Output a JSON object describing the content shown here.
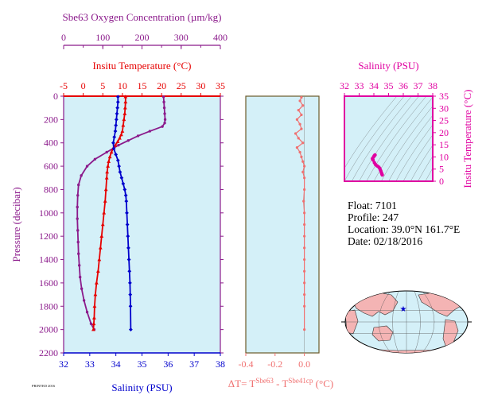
{
  "colors": {
    "oxygen": "#8b1a8b",
    "temperature": "#e60000",
    "salinity": "#0000cc",
    "delta": "#f07070",
    "ts": "#e000a0",
    "plot_bg": "#d4f0f8",
    "frame_dark": "#6b5a2a"
  },
  "float_info": {
    "float": "Float:  7101",
    "profile": "Profile:  247",
    "location": "Location:  39.0°N  161.7°E",
    "date": "Date:  02/18/2016"
  },
  "footer_tag": "PRINTED 2016",
  "chart_data": [
    {
      "type": "line",
      "name": "main-profile",
      "ylabel": "Pressure (decibar)",
      "ylim": [
        2200,
        0
      ],
      "yticks": [
        0,
        200,
        400,
        600,
        800,
        1000,
        1200,
        1400,
        1600,
        1800,
        2000,
        2200
      ],
      "axes": {
        "oxygen": {
          "label": "Sbe63 Oxygen Concentration (µm/kg)",
          "lim": [
            0,
            400
          ],
          "ticks": [
            0,
            100,
            200,
            300,
            400
          ]
        },
        "temperature": {
          "label": "Insitu Temperature (°C)",
          "lim": [
            -5,
            35
          ],
          "ticks": [
            -5,
            0,
            5,
            10,
            15,
            20,
            25,
            30,
            35
          ]
        },
        "salinity": {
          "label": "Salinity (PSU)",
          "lim": [
            32,
            38
          ],
          "ticks": [
            32,
            33,
            34,
            35,
            36,
            37,
            38
          ]
        }
      },
      "series": [
        {
          "axis": "oxygen",
          "x": [
            255,
            256,
            257,
            258,
            259,
            258,
            252,
            220,
            190,
            165,
            140,
            110,
            80,
            60,
            45,
            38,
            36,
            35,
            35,
            36,
            37,
            38,
            40,
            42,
            46,
            52,
            60,
            70,
            78
          ],
          "y": [
            5,
            50,
            100,
            150,
            200,
            230,
            260,
            300,
            340,
            380,
            420,
            480,
            540,
            600,
            680,
            760,
            850,
            950,
            1050,
            1150,
            1250,
            1350,
            1450,
            1550,
            1650,
            1750,
            1850,
            1950,
            2000
          ]
        },
        {
          "axis": "temperature",
          "x": [
            10.8,
            10.8,
            10.7,
            10.6,
            10.4,
            10.2,
            10.0,
            9.7,
            9.3,
            8.8,
            8.2,
            7.6,
            7.2,
            6.8,
            6.5,
            6.3,
            6.1,
            6.0,
            5.8,
            5.6,
            5.3,
            5.0,
            4.7,
            4.4,
            4.1,
            3.8,
            3.4,
            3.1,
            2.9,
            2.8,
            2.7,
            2.6
          ],
          "y": [
            5,
            50,
            100,
            150,
            200,
            250,
            300,
            330,
            360,
            390,
            420,
            450,
            480,
            520,
            560,
            600,
            650,
            700,
            800,
            900,
            1000,
            1100,
            1200,
            1300,
            1400,
            1500,
            1600,
            1700,
            1800,
            1900,
            1950,
            2000
          ]
        },
        {
          "axis": "salinity",
          "x": [
            34.08,
            34.08,
            34.06,
            34.04,
            34.02,
            34.0,
            33.98,
            33.94,
            33.9,
            33.92,
            34.0,
            34.08,
            34.12,
            34.16,
            34.22,
            34.28,
            34.34,
            34.38,
            34.4,
            34.42,
            34.44,
            34.46,
            34.48,
            34.5,
            34.52,
            34.54,
            34.55,
            34.56,
            34.57
          ],
          "y": [
            5,
            50,
            100,
            150,
            200,
            250,
            300,
            350,
            400,
            450,
            500,
            550,
            600,
            650,
            700,
            750,
            800,
            850,
            900,
            1000,
            1100,
            1200,
            1300,
            1400,
            1500,
            1600,
            1700,
            1800,
            2000
          ]
        }
      ]
    },
    {
      "type": "line",
      "name": "temperature-difference",
      "xlabel": "ΔT= T^Sbe63 - T^Sbe41cp (°C)",
      "xlim": [
        -0.4,
        0.1
      ],
      "xticks": [
        -0.4,
        -0.2,
        0.0
      ],
      "ylim": [
        2200,
        0
      ],
      "series": [
        {
          "x": [
            -0.02,
            -0.03,
            -0.01,
            -0.04,
            -0.02,
            -0.05,
            -0.03,
            -0.02,
            -0.06,
            -0.04,
            -0.01,
            -0.05,
            -0.03,
            -0.02,
            -0.01,
            0.0,
            -0.01,
            0.0,
            0.0,
            -0.005,
            0.0,
            0.0,
            0.0,
            0.0,
            0.0,
            0.0,
            0.0,
            0.0,
            0.0,
            0.0
          ],
          "y": [
            10,
            40,
            80,
            120,
            160,
            200,
            240,
            280,
            320,
            360,
            400,
            440,
            480,
            520,
            560,
            600,
            650,
            700,
            800,
            900,
            1000,
            1100,
            1200,
            1300,
            1400,
            1500,
            1600,
            1700,
            1800,
            2000
          ]
        }
      ]
    },
    {
      "type": "scatter",
      "name": "ts-diagram",
      "xlabel": "Salinity (PSU)",
      "ylabel": "Insitu Temperature (°C)",
      "xlim": [
        32,
        38
      ],
      "ylim": [
        0,
        35
      ],
      "xticks": [
        32,
        33,
        34,
        35,
        36,
        37,
        38
      ],
      "yticks": [
        0,
        5,
        10,
        15,
        20,
        25,
        30,
        35
      ],
      "series": [
        {
          "x": [
            34.57,
            34.55,
            34.52,
            34.48,
            34.44,
            34.4,
            34.34,
            34.22,
            34.12,
            34.04,
            33.94,
            33.9,
            33.98,
            34.02,
            34.06,
            34.08
          ],
          "y": [
            2.6,
            2.9,
            3.4,
            4.1,
            4.7,
            5.3,
            5.8,
            6.3,
            6.8,
            7.6,
            8.8,
            9.3,
            10.0,
            10.4,
            10.7,
            10.8
          ]
        }
      ]
    }
  ]
}
